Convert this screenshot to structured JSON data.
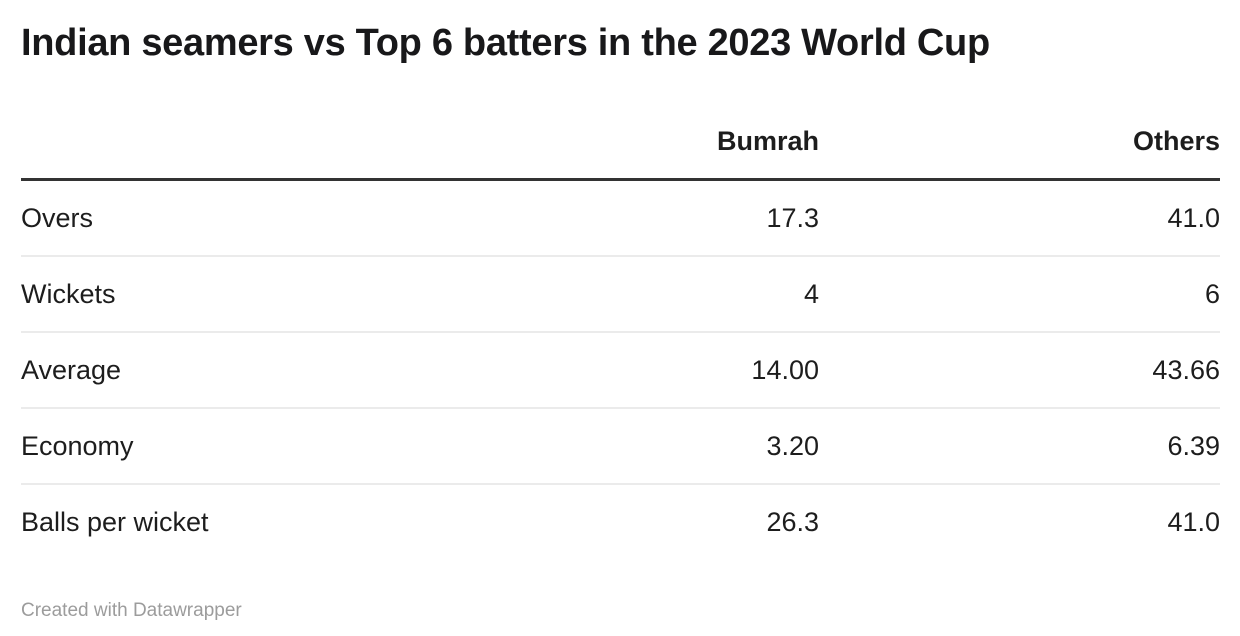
{
  "title": "Indian seamers vs Top 6 batters in the 2023 World Cup",
  "table": {
    "columns": [
      {
        "label": ""
      },
      {
        "label": "Bumrah"
      },
      {
        "label": "Others"
      }
    ],
    "rows": [
      {
        "label": "Overs",
        "values": [
          "17.3",
          "41.0"
        ]
      },
      {
        "label": "Wickets",
        "values": [
          "4",
          "6"
        ]
      },
      {
        "label": "Average",
        "values": [
          "14.00",
          "43.66"
        ]
      },
      {
        "label": "Economy",
        "values": [
          "3.20",
          "6.39"
        ]
      },
      {
        "label": "Balls per wicket",
        "values": [
          "26.3",
          "41.0"
        ]
      }
    ]
  },
  "footer": {
    "attribution": "Created with Datawrapper"
  },
  "colors": {
    "background": "#ffffff",
    "title_text": "#18181a",
    "body_text": "#1d1d1d",
    "header_rule": "#333333",
    "row_rule": "#ebebeb",
    "attribution_text": "#9c9c9c"
  },
  "chart_data": {
    "type": "table",
    "title": "Indian seamers vs Top 6 batters in the 2023 World Cup",
    "columns": [
      "",
      "Bumrah",
      "Others"
    ],
    "rows": [
      [
        "Overs",
        17.3,
        41.0
      ],
      [
        "Wickets",
        4,
        6
      ],
      [
        "Average",
        14.0,
        43.66
      ],
      [
        "Economy",
        3.2,
        6.39
      ],
      [
        "Balls per wicket",
        26.3,
        41.0
      ]
    ]
  }
}
